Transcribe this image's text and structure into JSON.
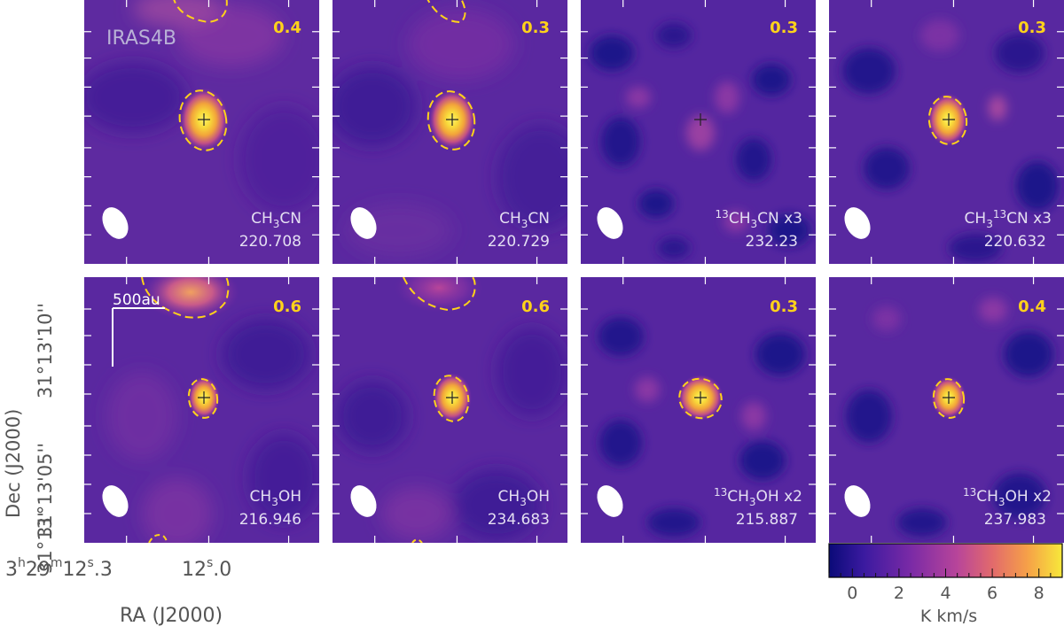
{
  "figure": {
    "source_label": "IRAS4B",
    "scalebar_label": "500au",
    "ra_axis_label": "RA (J2000)",
    "dec_axis_label": "Dec (J2000)",
    "ra_tick_main": "3h29m12.s3",
    "ra_tick_main_parts": {
      "h": "3",
      "m": "29",
      "s_int": "12",
      "s_frac": "3"
    },
    "ra_tick_second": {
      "s_int": "12",
      "s_frac": "0"
    },
    "dec_ticks": [
      "31°13'10''",
      "31°13'05''",
      "31°13'"
    ],
    "colorbar": {
      "label": "K km/s",
      "ticks": [
        "0",
        "2",
        "4",
        "6",
        "8"
      ],
      "min": -1,
      "max": 9,
      "colormap": [
        "#0a0a78",
        "#3b1aa0",
        "#7a2aa6",
        "#b8459a",
        "#e26a6c",
        "#f6a048",
        "#f7e83a"
      ]
    },
    "accent_color": "#ffd21a",
    "panels": [
      {
        "row": 0,
        "col": 0,
        "contour_level": "0.4",
        "species": "CH3CN",
        "species_display": [
          "CH",
          "3",
          "CN",
          ""
        ],
        "freq": "220.708"
      },
      {
        "row": 0,
        "col": 1,
        "contour_level": "0.3",
        "species": "CH3CN",
        "species_display": [
          "CH",
          "3",
          "CN",
          ""
        ],
        "freq": "220.729"
      },
      {
        "row": 0,
        "col": 2,
        "contour_level": "0.3",
        "species": "13CH3CN x3",
        "freq": "232.23"
      },
      {
        "row": 0,
        "col": 3,
        "contour_level": "0.3",
        "species": "CH3 13CN x3",
        "freq": "220.632"
      },
      {
        "row": 1,
        "col": 0,
        "contour_level": "0.6",
        "species": "CH3OH",
        "freq": "216.946"
      },
      {
        "row": 1,
        "col": 1,
        "contour_level": "0.6",
        "species": "CH3OH",
        "freq": "234.683"
      },
      {
        "row": 1,
        "col": 2,
        "contour_level": "0.3",
        "species": "13CH3OH x2",
        "freq": "215.887"
      },
      {
        "row": 1,
        "col": 3,
        "contour_level": "0.4",
        "species": "13CH3OH x2",
        "freq": "237.983"
      }
    ]
  }
}
